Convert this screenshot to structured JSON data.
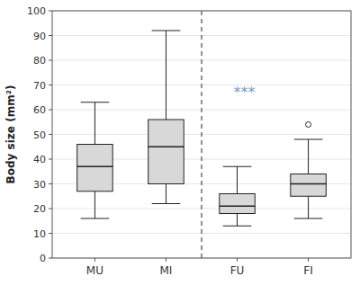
{
  "chart_data": {
    "type": "box",
    "ylabel": "Body size (mm²)",
    "categories": [
      "MU",
      "MI",
      "FU",
      "FI"
    ],
    "boxes": [
      {
        "whisker_low": 16,
        "q1": 27,
        "median": 37,
        "q3": 46,
        "whisker_high": 63,
        "outliers": []
      },
      {
        "whisker_low": 22,
        "q1": 30,
        "median": 45,
        "q3": 56,
        "whisker_high": 92,
        "outliers": []
      },
      {
        "whisker_low": 13,
        "q1": 18,
        "median": 21,
        "q3": 26,
        "whisker_high": 37,
        "outliers": []
      },
      {
        "whisker_low": 16,
        "q1": 25,
        "median": 30,
        "q3": 34,
        "whisker_high": 48,
        "outliers": [
          54
        ]
      }
    ],
    "color": "#d8d8d8",
    "ylim": [
      0,
      100
    ],
    "yticks": [
      0,
      10,
      20,
      30,
      40,
      50,
      60,
      70,
      80,
      90,
      100
    ],
    "divider_x": 2.5,
    "annotations": [
      {
        "text": "***",
        "x": 3.1,
        "y": 67,
        "color": "#7a9ab8"
      }
    ]
  }
}
